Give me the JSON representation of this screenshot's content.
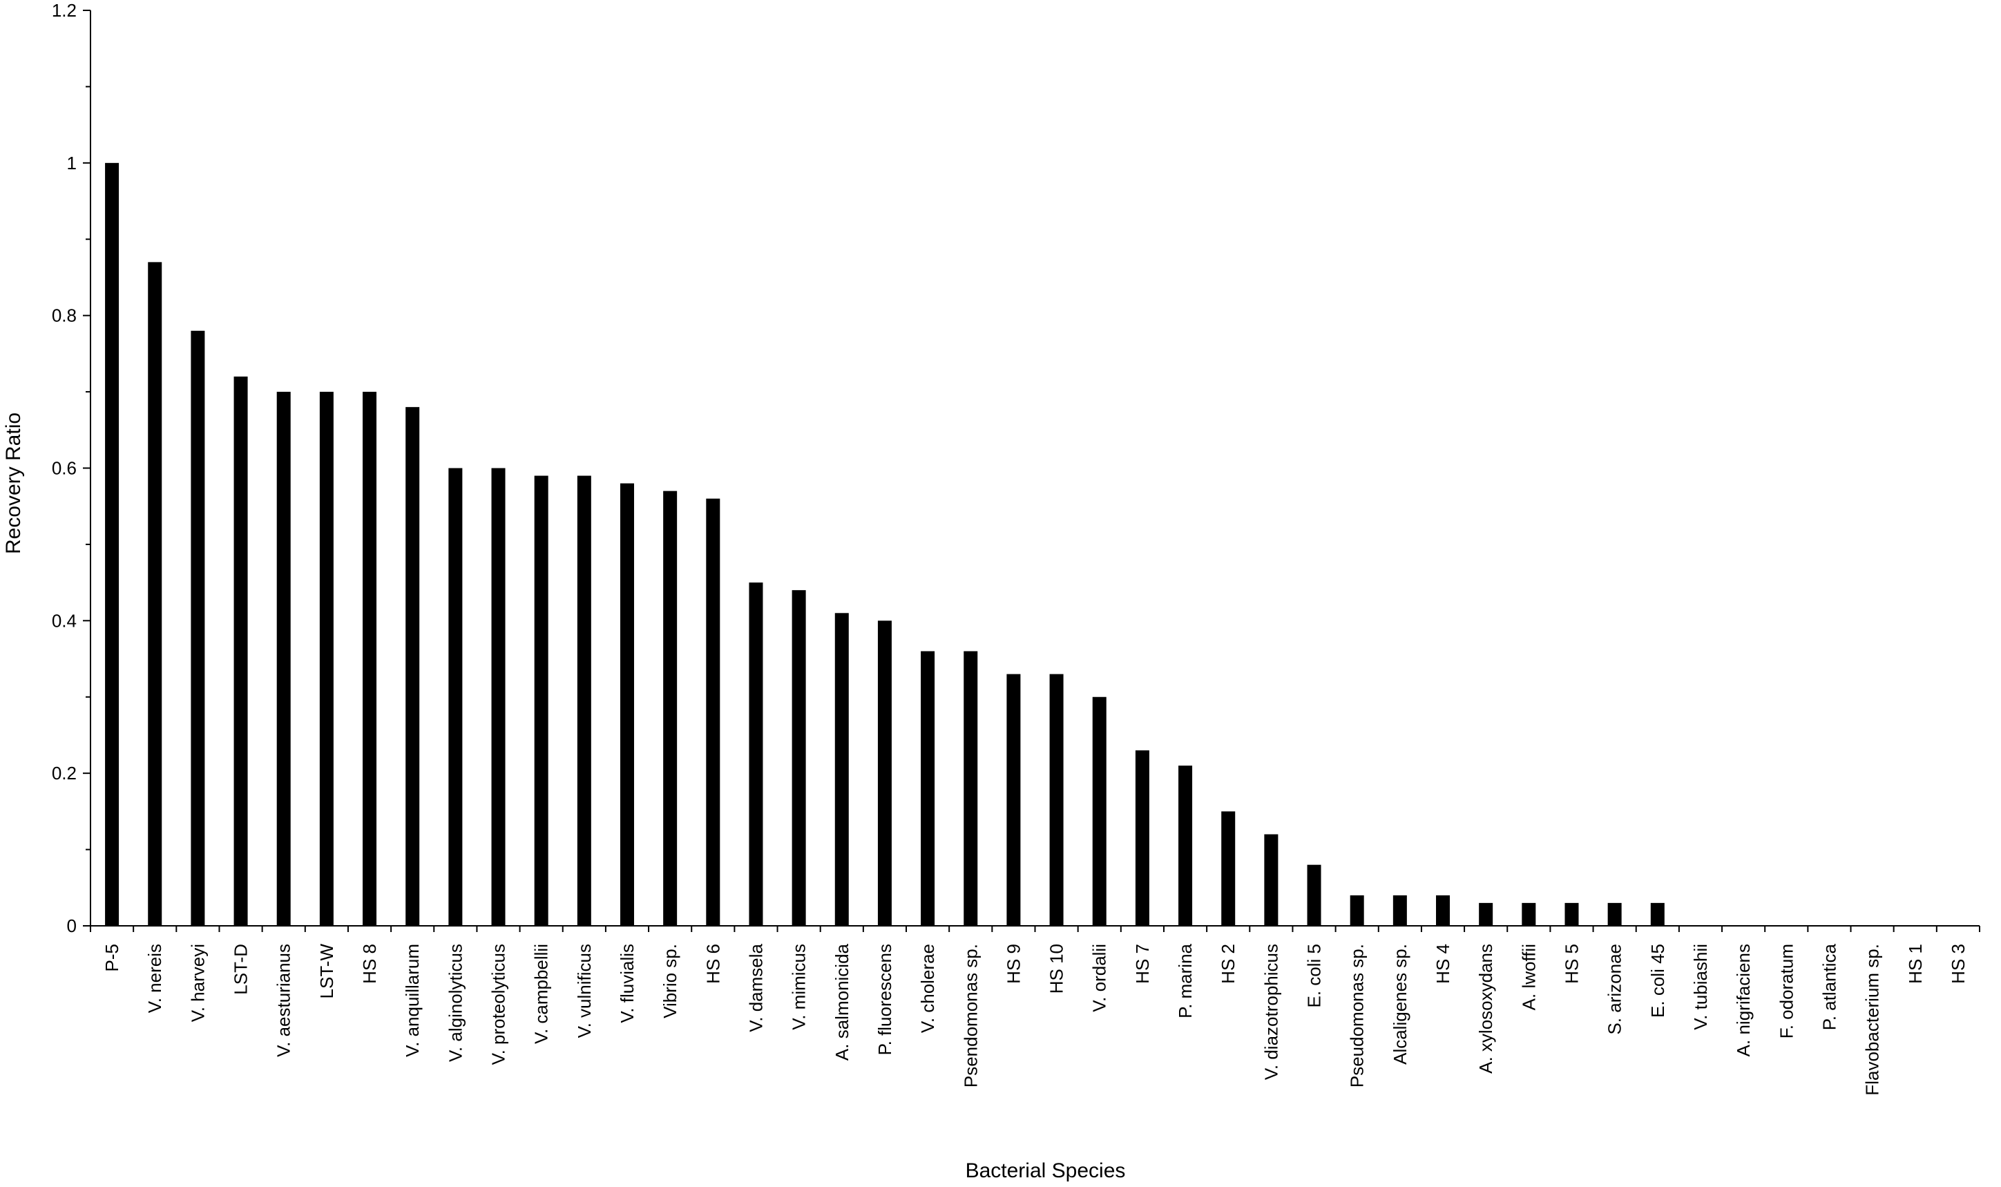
{
  "chart_data": {
    "type": "bar",
    "title": "",
    "xlabel": "Bacterial Species",
    "ylabel": "Recovery Ratio",
    "ylim": [
      0,
      1.2
    ],
    "y_major_ticks": [
      "0",
      "0.2",
      "0.4",
      "0.6",
      "0.8",
      "1",
      "1.2"
    ],
    "y_major_values": [
      0,
      0.2,
      0.4,
      0.6,
      0.8,
      1.0,
      1.2
    ],
    "y_minor_step": 0.1,
    "grid": false,
    "bar_color": "#000000",
    "categories": [
      "P-5",
      "V. nereis",
      "V. harveyi",
      "LST-D",
      "V. aesturianus",
      "LST-W",
      "HS 8",
      "V. anquillarum",
      "V. alginolyticus",
      "V. proteolyticus",
      "V. campbellii",
      "V. vulnificus",
      "V. fluvialis",
      "Vibrio sp.",
      "HS 6",
      "V. damsela",
      "V. mimicus",
      "A. salmonicida",
      "P. fluorescens",
      "V. cholerae",
      "Psendomonas sp.",
      "HS 9",
      "HS 10",
      "V. ordalii",
      "HS 7",
      "P. marina",
      "HS 2",
      "V. diazotrophicus",
      "E. coli 5",
      "Pseudomonas sp.",
      "Alcaligenes sp.",
      "HS 4",
      "A. xylosoxydans",
      "A. lwoffii",
      "HS 5",
      "S. arizonae",
      "E. coli 45",
      "V. tubiashii",
      "A. nigrifaciens",
      "F. odoratum",
      "P. atlantica",
      "Flavobacterium sp.",
      "HS 1",
      "HS 3"
    ],
    "values": [
      1.0,
      0.87,
      0.78,
      0.72,
      0.7,
      0.7,
      0.7,
      0.68,
      0.6,
      0.6,
      0.59,
      0.59,
      0.58,
      0.57,
      0.56,
      0.45,
      0.44,
      0.41,
      0.4,
      0.36,
      0.36,
      0.33,
      0.33,
      0.3,
      0.23,
      0.21,
      0.15,
      0.12,
      0.08,
      0.04,
      0.04,
      0.04,
      0.03,
      0.03,
      0.03,
      0.03,
      0.03,
      0,
      0,
      0,
      0,
      0,
      0,
      0
    ]
  }
}
